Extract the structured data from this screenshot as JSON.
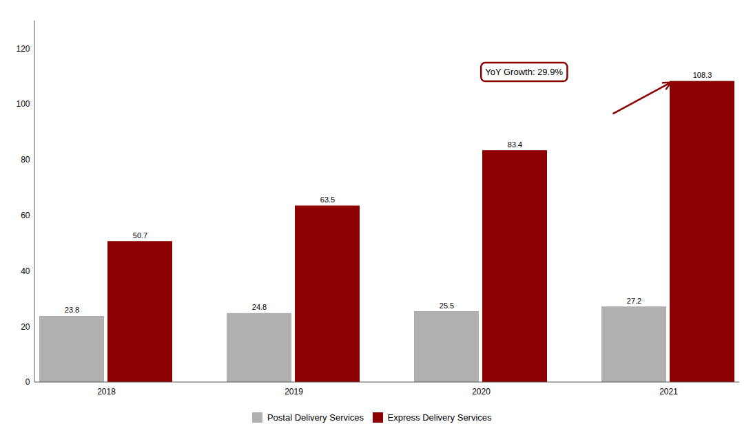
{
  "chart_data": {
    "type": "bar",
    "categories": [
      "2018",
      "2019",
      "2020",
      "2021"
    ],
    "series": [
      {
        "name": "Postal Delivery Services",
        "color": "#b0b0b0",
        "values": [
          23.8,
          24.8,
          25.5,
          27.2
        ]
      },
      {
        "name": "Express Delivery Services",
        "color": "#8b0000",
        "values": [
          50.7,
          63.5,
          83.4,
          108.3
        ]
      }
    ],
    "ylim": [
      0,
      130
    ],
    "yticks": [
      0,
      20,
      40,
      60,
      80,
      100,
      120
    ],
    "grid": false,
    "data_labels": true,
    "legend": "bottom",
    "annotations": [
      {
        "text": "YoY Growth: 29.9%",
        "category": "2021",
        "series": "Express Delivery Services",
        "color": "#8b0000"
      }
    ]
  }
}
